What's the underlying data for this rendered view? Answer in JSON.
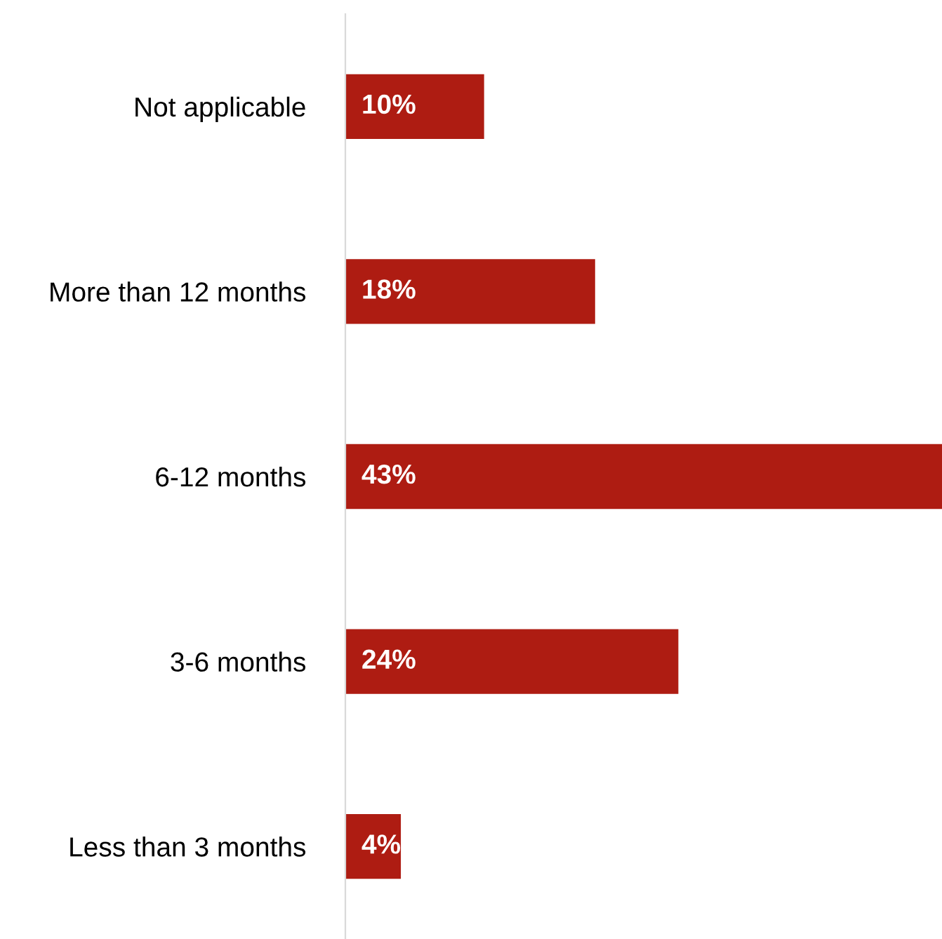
{
  "chart_data": {
    "type": "bar",
    "orientation": "horizontal",
    "categories": [
      "Not applicable",
      "More than 12 months",
      "6-12 months",
      "3-6 months",
      "Less than 3 months"
    ],
    "values": [
      10,
      18,
      43,
      24,
      4
    ],
    "value_labels": [
      "10%",
      "18%",
      "43%",
      "24%",
      "4%"
    ],
    "color": "#ae1c12"
  }
}
